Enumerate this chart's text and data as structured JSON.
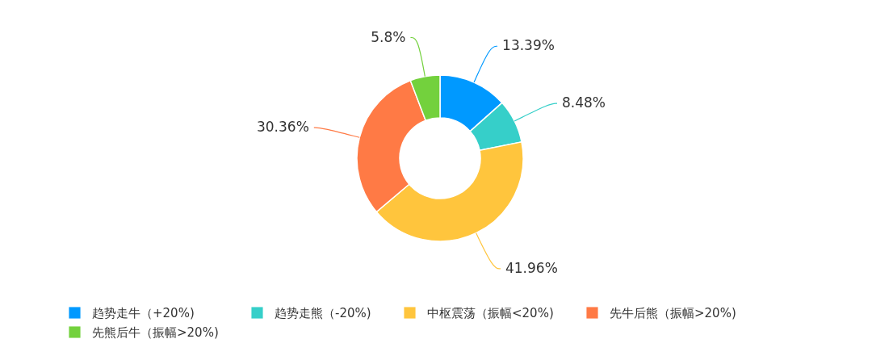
{
  "chart_data": {
    "type": "donut",
    "categories": [
      "趋势走牛（+20%)",
      "趋势走熊（-20%)",
      "中枢震荡（振幅<20%)",
      "先牛后熊（振幅>20%)",
      "先熊后牛（振幅>20%)"
    ],
    "values": [
      13.39,
      8.48,
      41.96,
      30.36,
      5.8
    ],
    "colors": [
      "#0099ff",
      "#36cfc9",
      "#ffc53d",
      "#ff7a45",
      "#73d13d"
    ],
    "value_labels": [
      "13.39%",
      "8.48%",
      "41.96%",
      "30.36%",
      "5.8%"
    ],
    "legend": "bottom"
  }
}
